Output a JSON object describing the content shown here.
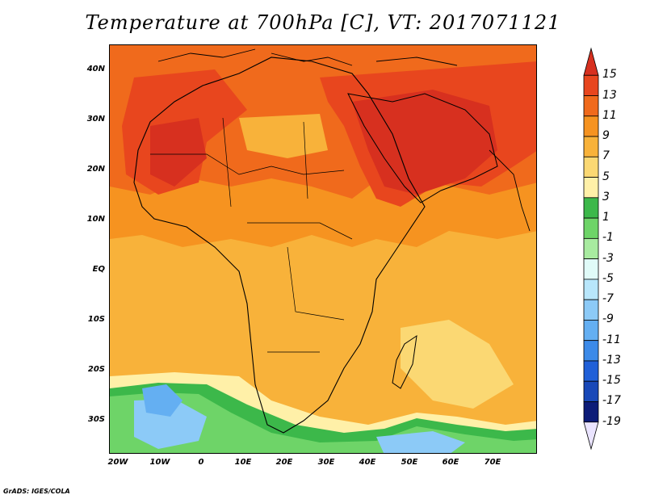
{
  "title": "Temperature at 700hPa [C], VT: 2017071121",
  "credit": "GrADS: IGES/COLA",
  "map": {
    "lat_ticks": [
      "40N",
      "30N",
      "20N",
      "10N",
      "EQ",
      "10S",
      "20S",
      "30S"
    ],
    "lon_ticks": [
      "20W",
      "10W",
      "0",
      "10E",
      "20E",
      "30E",
      "40E",
      "50E",
      "60E",
      "70E"
    ]
  },
  "colorbar": {
    "labels": [
      "15",
      "13",
      "11",
      "9",
      "7",
      "5",
      "3",
      "1",
      "-1",
      "-3",
      "-5",
      "-7",
      "-9",
      "-11",
      "-13",
      "-15",
      "-17",
      "-19"
    ],
    "colors": [
      "#d7301f",
      "#e8461e",
      "#f06a1c",
      "#f69320",
      "#f8b23a",
      "#fbd873",
      "#fff0a8",
      "#3cb84a",
      "#6ed468",
      "#a8eba0",
      "#e0fbf8",
      "#b8e6fb",
      "#8ccaf7",
      "#64aff2",
      "#3c8ae8",
      "#2060d8",
      "#1848b8",
      "#0c1c78",
      "#eae4ff"
    ]
  }
}
